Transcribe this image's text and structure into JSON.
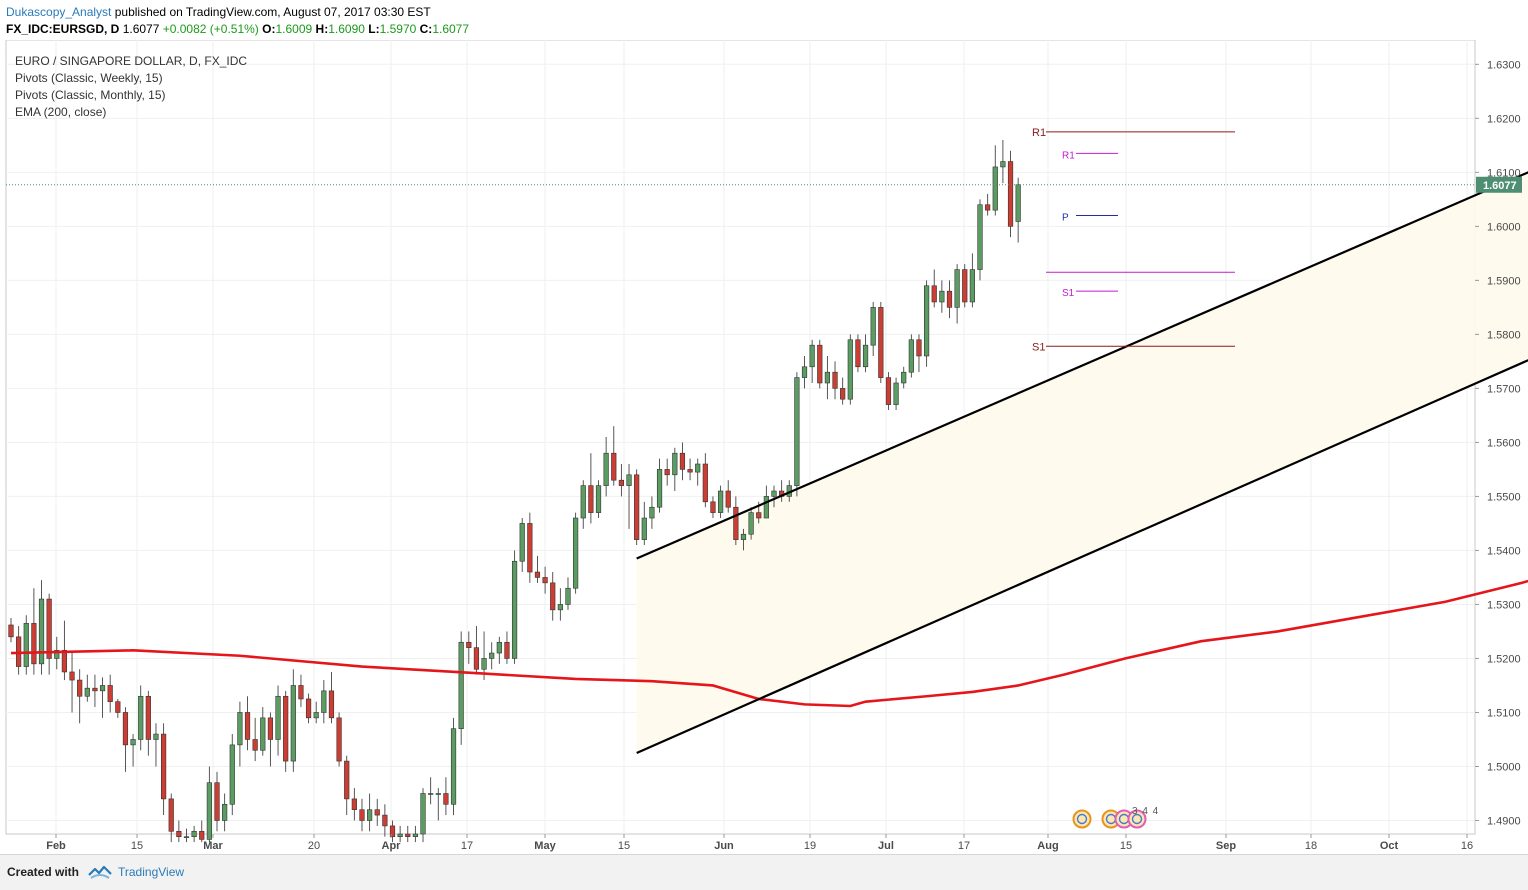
{
  "header": {
    "author": "Dukascopy_Analyst",
    "published": "published on TradingView.com, August 07, 2017 03:30 EST",
    "symbol": "FX_IDC:EURSGD, D",
    "last": "1.6077",
    "change": "+0.0082 (+0.51%)",
    "o_label": "O:",
    "o_value": "1.6009",
    "h_label": "H:",
    "h_value": "1.6090",
    "l_label": "L:",
    "l_value": "1.5970",
    "c_label": "C:",
    "c_value": "1.6077"
  },
  "legend": [
    "EURO / SINGAPORE DOLLAR, D, FX_IDC",
    "Pivots (Classic, Weekly, 15)",
    "Pivots (Classic, Monthly, 15)",
    "EMA (200, close)"
  ],
  "footer": {
    "created_with": "Created with",
    "brand": "TradingView"
  },
  "colors": {
    "up": "#5b9c63",
    "down": "#cc3d33",
    "ema": "#e5161b",
    "monthly_pivot": "#8b1a1a",
    "weekly_pivot": "#c21bcf",
    "weekly_p": "#1f2fa8",
    "channel": "#000000",
    "last_price": "#4e8f73"
  },
  "chart_data": {
    "type": "candlestick",
    "symbol": "FX_IDC:EURSGD",
    "timeframe": "D",
    "ylim": [
      1.4875,
      1.6345
    ],
    "y_ticks": [
      "1.6300",
      "1.6200",
      "1.6100",
      "1.6000",
      "1.5900",
      "1.5800",
      "1.5700",
      "1.5600",
      "1.5500",
      "1.5400",
      "1.5300",
      "1.5200",
      "1.5100",
      "1.5000",
      "1.4900"
    ],
    "x_labels": [
      "Feb",
      "15",
      "Mar",
      "20",
      "Apr",
      "17",
      "May",
      "15",
      "Jun",
      "19",
      "Jul",
      "17",
      "Aug",
      "15",
      "Sep",
      "18",
      "Oct",
      "16"
    ],
    "last_price_label": "1.6077",
    "last_price": 1.6077,
    "candles": [
      [
        1.5262,
        1.5275,
        1.523,
        1.524
      ],
      [
        1.524,
        1.526,
        1.517,
        1.5185
      ],
      [
        1.5185,
        1.528,
        1.517,
        1.5265
      ],
      [
        1.5265,
        1.533,
        1.517,
        1.519
      ],
      [
        1.519,
        1.5345,
        1.517,
        1.531
      ],
      [
        1.531,
        1.532,
        1.517,
        1.52
      ],
      [
        1.52,
        1.524,
        1.518,
        1.5215
      ],
      [
        1.5215,
        1.527,
        1.516,
        1.5175
      ],
      [
        1.5175,
        1.521,
        1.51,
        1.516
      ],
      [
        1.516,
        1.518,
        1.508,
        1.513
      ],
      [
        1.513,
        1.517,
        1.512,
        1.5145
      ],
      [
        1.5145,
        1.517,
        1.511,
        1.514
      ],
      [
        1.514,
        1.5165,
        1.509,
        1.515
      ],
      [
        1.515,
        1.517,
        1.51,
        1.512
      ],
      [
        1.512,
        1.5125,
        1.509,
        1.51
      ],
      [
        1.51,
        1.511,
        1.499,
        1.504
      ],
      [
        1.504,
        1.506,
        1.5,
        1.505
      ],
      [
        1.505,
        1.515,
        1.503,
        1.513
      ],
      [
        1.513,
        1.514,
        1.502,
        1.505
      ],
      [
        1.505,
        1.508,
        1.5,
        1.506
      ],
      [
        1.506,
        1.508,
        1.491,
        1.494
      ],
      [
        1.494,
        1.495,
        1.486,
        1.488
      ],
      [
        1.488,
        1.49,
        1.486,
        1.487
      ],
      [
        1.487,
        1.4885,
        1.486,
        1.487
      ],
      [
        1.487,
        1.489,
        1.486,
        1.488
      ],
      [
        1.488,
        1.49,
        1.486,
        1.4865
      ],
      [
        1.4865,
        1.5,
        1.486,
        1.497
      ],
      [
        1.497,
        1.499,
        1.488,
        1.49
      ],
      [
        1.49,
        1.495,
        1.488,
        1.493
      ],
      [
        1.493,
        1.506,
        1.491,
        1.504
      ],
      [
        1.504,
        1.512,
        1.5,
        1.51
      ],
      [
        1.51,
        1.513,
        1.503,
        1.505
      ],
      [
        1.505,
        1.509,
        1.501,
        1.503
      ],
      [
        1.503,
        1.511,
        1.502,
        1.509
      ],
      [
        1.509,
        1.51,
        1.5,
        1.505
      ],
      [
        1.505,
        1.515,
        1.502,
        1.513
      ],
      [
        1.513,
        1.514,
        1.499,
        1.501
      ],
      [
        1.501,
        1.518,
        1.499,
        1.515
      ],
      [
        1.515,
        1.517,
        1.511,
        1.5125
      ],
      [
        1.5125,
        1.5135,
        1.508,
        1.509
      ],
      [
        1.509,
        1.512,
        1.508,
        1.51
      ],
      [
        1.51,
        1.516,
        1.508,
        1.514
      ],
      [
        1.514,
        1.5175,
        1.508,
        1.509
      ],
      [
        1.509,
        1.51,
        1.5,
        1.501
      ],
      [
        1.501,
        1.502,
        1.491,
        1.494
      ],
      [
        1.494,
        1.496,
        1.49,
        1.492
      ],
      [
        1.492,
        1.494,
        1.488,
        1.49
      ],
      [
        1.49,
        1.495,
        1.488,
        1.492
      ],
      [
        1.492,
        1.494,
        1.489,
        1.491
      ],
      [
        1.491,
        1.493,
        1.487,
        1.489
      ],
      [
        1.489,
        1.49,
        1.486,
        1.487
      ],
      [
        1.487,
        1.489,
        1.486,
        1.4875
      ],
      [
        1.4875,
        1.489,
        1.486,
        1.487
      ],
      [
        1.487,
        1.489,
        1.486,
        1.4875
      ],
      [
        1.4875,
        1.496,
        1.486,
        1.495
      ],
      [
        1.495,
        1.498,
        1.493,
        1.495
      ],
      [
        1.495,
        1.496,
        1.49,
        1.495
      ],
      [
        1.495,
        1.498,
        1.491,
        1.493
      ],
      [
        1.493,
        1.509,
        1.491,
        1.507
      ],
      [
        1.507,
        1.525,
        1.504,
        1.523
      ],
      [
        1.523,
        1.525,
        1.519,
        1.522
      ],
      [
        1.522,
        1.526,
        1.517,
        1.518
      ],
      [
        1.518,
        1.525,
        1.516,
        1.52
      ],
      [
        1.52,
        1.523,
        1.518,
        1.521
      ],
      [
        1.521,
        1.524,
        1.519,
        1.523
      ],
      [
        1.523,
        1.525,
        1.519,
        1.52
      ],
      [
        1.52,
        1.54,
        1.519,
        1.538
      ],
      [
        1.538,
        1.546,
        1.536,
        1.545
      ],
      [
        1.545,
        1.547,
        1.534,
        1.536
      ],
      [
        1.536,
        1.539,
        1.534,
        1.535
      ],
      [
        1.535,
        1.537,
        1.532,
        1.534
      ],
      [
        1.534,
        1.536,
        1.527,
        1.529
      ],
      [
        1.529,
        1.533,
        1.527,
        1.53
      ],
      [
        1.53,
        1.535,
        1.529,
        1.533
      ],
      [
        1.533,
        1.547,
        1.532,
        1.546
      ],
      [
        1.546,
        1.553,
        1.544,
        1.552
      ],
      [
        1.552,
        1.558,
        1.545,
        1.547
      ],
      [
        1.547,
        1.553,
        1.546,
        1.552
      ],
      [
        1.552,
        1.561,
        1.55,
        1.558
      ],
      [
        1.558,
        1.563,
        1.552,
        1.553
      ],
      [
        1.553,
        1.556,
        1.55,
        1.552
      ],
      [
        1.552,
        1.556,
        1.544,
        1.554
      ],
      [
        1.554,
        1.555,
        1.541,
        1.542
      ],
      [
        1.542,
        1.549,
        1.541,
        1.546
      ],
      [
        1.546,
        1.55,
        1.544,
        1.548
      ],
      [
        1.548,
        1.557,
        1.547,
        1.555
      ],
      [
        1.555,
        1.557,
        1.552,
        1.554
      ],
      [
        1.554,
        1.559,
        1.551,
        1.558
      ],
      [
        1.558,
        1.56,
        1.553,
        1.555
      ],
      [
        1.555,
        1.557,
        1.553,
        1.5545
      ],
      [
        1.5545,
        1.557,
        1.552,
        1.556
      ],
      [
        1.556,
        1.558,
        1.548,
        1.549
      ],
      [
        1.549,
        1.55,
        1.546,
        1.547
      ],
      [
        1.547,
        1.552,
        1.546,
        1.551
      ],
      [
        1.551,
        1.553,
        1.547,
        1.548
      ],
      [
        1.548,
        1.55,
        1.541,
        1.542
      ],
      [
        1.542,
        1.544,
        1.54,
        1.543
      ],
      [
        1.543,
        1.548,
        1.542,
        1.547
      ],
      [
        1.547,
        1.549,
        1.545,
        1.546
      ],
      [
        1.546,
        1.552,
        1.546,
        1.55
      ],
      [
        1.55,
        1.552,
        1.548,
        1.551
      ],
      [
        1.551,
        1.553,
        1.549,
        1.55
      ],
      [
        1.55,
        1.553,
        1.549,
        1.552
      ],
      [
        1.552,
        1.573,
        1.55,
        1.572
      ],
      [
        1.572,
        1.576,
        1.57,
        1.574
      ],
      [
        1.574,
        1.579,
        1.571,
        1.578
      ],
      [
        1.578,
        1.579,
        1.57,
        1.571
      ],
      [
        1.571,
        1.576,
        1.568,
        1.573
      ],
      [
        1.573,
        1.575,
        1.568,
        1.57
      ],
      [
        1.57,
        1.572,
        1.567,
        1.568
      ],
      [
        1.568,
        1.58,
        1.567,
        1.579
      ],
      [
        1.579,
        1.58,
        1.573,
        1.574
      ],
      [
        1.574,
        1.58,
        1.573,
        1.578
      ],
      [
        1.578,
        1.586,
        1.576,
        1.585
      ],
      [
        1.585,
        1.586,
        1.571,
        1.572
      ],
      [
        1.572,
        1.573,
        1.566,
        1.567
      ],
      [
        1.567,
        1.572,
        1.566,
        1.571
      ],
      [
        1.571,
        1.574,
        1.57,
        1.573
      ],
      [
        1.573,
        1.58,
        1.572,
        1.579
      ],
      [
        1.579,
        1.58,
        1.573,
        1.576
      ],
      [
        1.576,
        1.59,
        1.574,
        1.589
      ],
      [
        1.589,
        1.592,
        1.585,
        1.586
      ],
      [
        1.586,
        1.59,
        1.584,
        1.588
      ],
      [
        1.588,
        1.59,
        1.583,
        1.585
      ],
      [
        1.585,
        1.593,
        1.582,
        1.592
      ],
      [
        1.592,
        1.593,
        1.585,
        1.586
      ],
      [
        1.586,
        1.595,
        1.585,
        1.592
      ],
      [
        1.592,
        1.605,
        1.59,
        1.604
      ],
      [
        1.604,
        1.606,
        1.602,
        1.603
      ],
      [
        1.603,
        1.615,
        1.602,
        1.611
      ],
      [
        1.611,
        1.616,
        1.608,
        1.612
      ],
      [
        1.612,
        1.614,
        1.598,
        1.6
      ],
      [
        1.6009,
        1.609,
        1.597,
        1.6077
      ]
    ],
    "ema_200": [
      [
        0,
        1.521
      ],
      [
        16,
        1.5215
      ],
      [
        30,
        1.5205
      ],
      [
        46,
        1.5185
      ],
      [
        62,
        1.5172
      ],
      [
        74,
        1.5162
      ],
      [
        84,
        1.5158
      ],
      [
        92,
        1.515
      ],
      [
        98,
        1.5125
      ],
      [
        104,
        1.5115
      ],
      [
        110,
        1.5112
      ],
      [
        112,
        1.512
      ],
      [
        120,
        1.513
      ],
      [
        126,
        1.5138
      ],
      [
        132,
        1.515
      ],
      [
        138,
        1.517
      ],
      [
        146,
        1.52
      ],
      [
        156,
        1.5232
      ],
      [
        166,
        1.525
      ],
      [
        176,
        1.5275
      ],
      [
        188,
        1.5305
      ],
      [
        198,
        1.534
      ],
      [
        208,
        1.538
      ],
      [
        212,
        1.539
      ]
    ],
    "channel": {
      "upper": [
        [
          82,
          1.5385
        ],
        [
          225,
          1.626
        ]
      ],
      "lower": [
        [
          82,
          1.5025
        ],
        [
          221,
          1.589
        ]
      ]
    },
    "pivots_monthly": [
      {
        "label": "R1",
        "value": 1.6175
      },
      {
        "label": "P",
        "value": 1.5915
      },
      {
        "label": "S1",
        "value": 1.5778
      }
    ],
    "pivots_weekly": [
      {
        "label": "R1",
        "value": 1.6135
      },
      {
        "label": "P",
        "value": 1.602
      },
      {
        "label": "S1",
        "value": 1.588
      }
    ],
    "events_label": "3 4 4"
  }
}
